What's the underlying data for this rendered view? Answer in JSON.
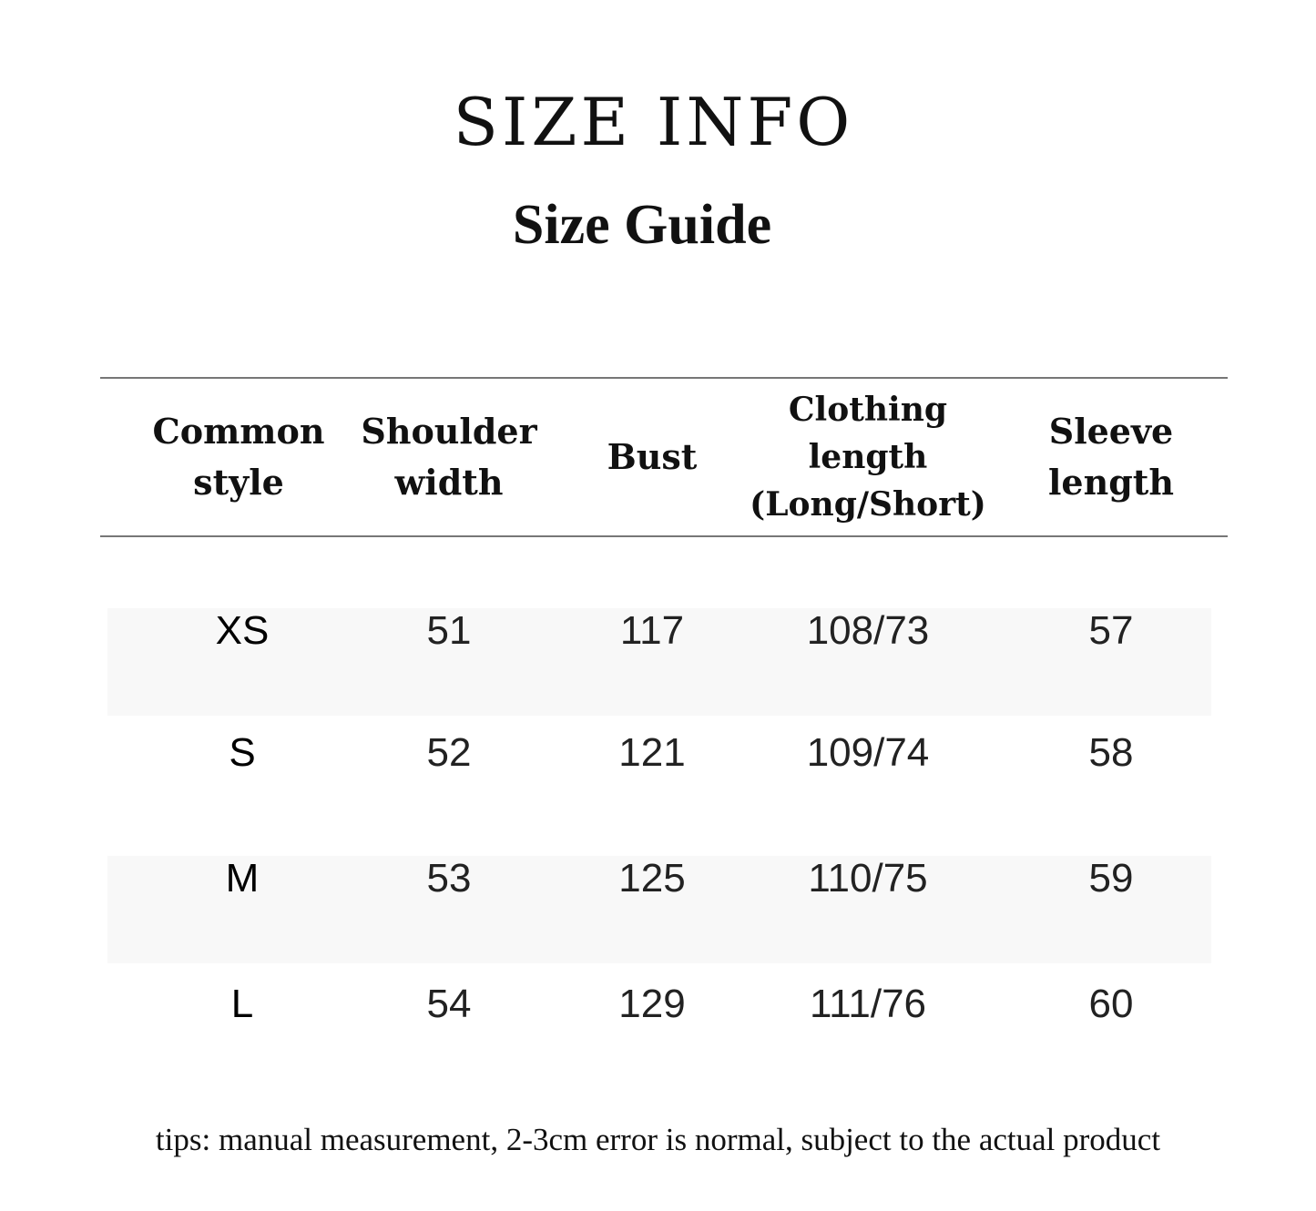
{
  "title": "SIZE INFO",
  "subtitle": "Size Guide",
  "table": {
    "headers": [
      [
        "Common",
        "style"
      ],
      [
        "Shoulder",
        "width"
      ],
      [
        "Bust"
      ],
      [
        "Clothing",
        "length",
        "(Long/Short)"
      ],
      [
        "Sleeve",
        "length"
      ]
    ],
    "rows": [
      [
        "XS",
        "51",
        "117",
        "108/73",
        "57"
      ],
      [
        "S",
        "52",
        "121",
        "109/74",
        "58"
      ],
      [
        "M",
        "53",
        "125",
        "110/75",
        "59"
      ],
      [
        "L",
        "54",
        "129",
        "111/76",
        "60"
      ]
    ]
  },
  "tips": "tips: manual measurement, 2-3cm error is normal, subject to the actual product"
}
